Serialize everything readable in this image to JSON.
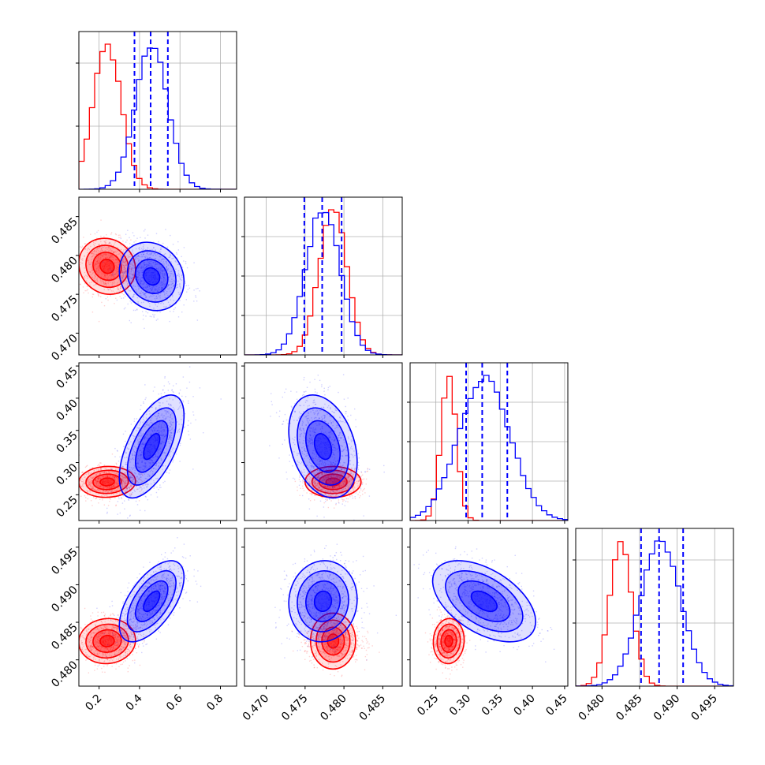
{
  "colors": {
    "red": "#ff0000",
    "blue": "#0000ff",
    "grid": "#b0b0b0",
    "frame": "#000000"
  },
  "chart_data": {
    "type": "corner",
    "grid": true,
    "series": [
      {
        "color": "#ff0000",
        "dims": [
          {
            "mean": 0.24,
            "sd": 0.07
          },
          {
            "mean": 0.4786,
            "sd": 0.0018
          },
          {
            "mean": 0.27,
            "sd": 0.012
          },
          {
            "mean": 0.4825,
            "sd": 0.0015
          }
        ]
      },
      {
        "color": "#0000ff",
        "dims": [
          {
            "mean": 0.46,
            "sd": 0.08
          },
          {
            "mean": 0.4773,
            "sd": 0.0022
          },
          {
            "mean": 0.325,
            "sd": 0.04
          },
          {
            "mean": 0.4878,
            "sd": 0.0027
          }
        ]
      }
    ],
    "dims": [
      {
        "range": [
          0.1,
          0.88
        ],
        "ticks": [
          0.2,
          0.4,
          0.6,
          0.8
        ],
        "tick_labels": [
          "0.2",
          "0.4",
          "0.6",
          "0.8"
        ]
      },
      {
        "range": [
          0.4672,
          0.4875
        ],
        "ticks": [
          0.47,
          0.475,
          0.48,
          0.485
        ],
        "tick_labels": [
          "0.470",
          "0.475",
          "0.480",
          "0.485"
        ]
      },
      {
        "range": [
          0.21,
          0.455
        ],
        "ticks": [
          0.25,
          0.3,
          0.35,
          0.4,
          0.45
        ],
        "tick_labels": [
          "0.25",
          "0.30",
          "0.35",
          "0.40",
          "0.45"
        ]
      },
      {
        "range": [
          0.4765,
          0.4975
        ],
        "ticks": [
          0.48,
          0.485,
          0.49,
          0.495
        ],
        "tick_labels": [
          "0.480",
          "0.485",
          "0.490",
          "0.495"
        ]
      }
    ],
    "quantile_lines": [
      {
        "color": "#0000ff",
        "values": [
          0.375,
          0.455,
          0.54
        ]
      },
      {
        "color": "#0000ff",
        "values": [
          0.4749,
          0.4772,
          0.4797
        ]
      },
      {
        "color": "#0000ff",
        "values": [
          0.297,
          0.322,
          0.361
        ]
      },
      {
        "color": "#0000ff",
        "values": [
          0.4852,
          0.4876,
          0.4908
        ]
      }
    ],
    "hist_grid_levels": [
      [
        0.4,
        0.8
      ],
      [
        0.25,
        0.5,
        0.75
      ],
      [
        0.25,
        0.5,
        0.75
      ],
      [
        0.4,
        0.8
      ]
    ],
    "pairs": [
      {
        "x_dim": 0,
        "y_dim": 1,
        "correlation": [
          -0.1,
          -0.15
        ]
      },
      {
        "x_dim": 0,
        "y_dim": 2,
        "correlation": [
          0.05,
          0.6
        ]
      },
      {
        "x_dim": 1,
        "y_dim": 2,
        "correlation": [
          0.0,
          -0.3
        ]
      },
      {
        "x_dim": 0,
        "y_dim": 3,
        "correlation": [
          0.05,
          0.6
        ]
      },
      {
        "x_dim": 1,
        "y_dim": 3,
        "correlation": [
          0.0,
          0.05
        ]
      },
      {
        "x_dim": 2,
        "y_dim": 3,
        "correlation": [
          0.05,
          -0.5
        ]
      }
    ],
    "contour_levels_sigma": [
      0.5,
      1.0,
      1.5,
      2.0
    ]
  }
}
